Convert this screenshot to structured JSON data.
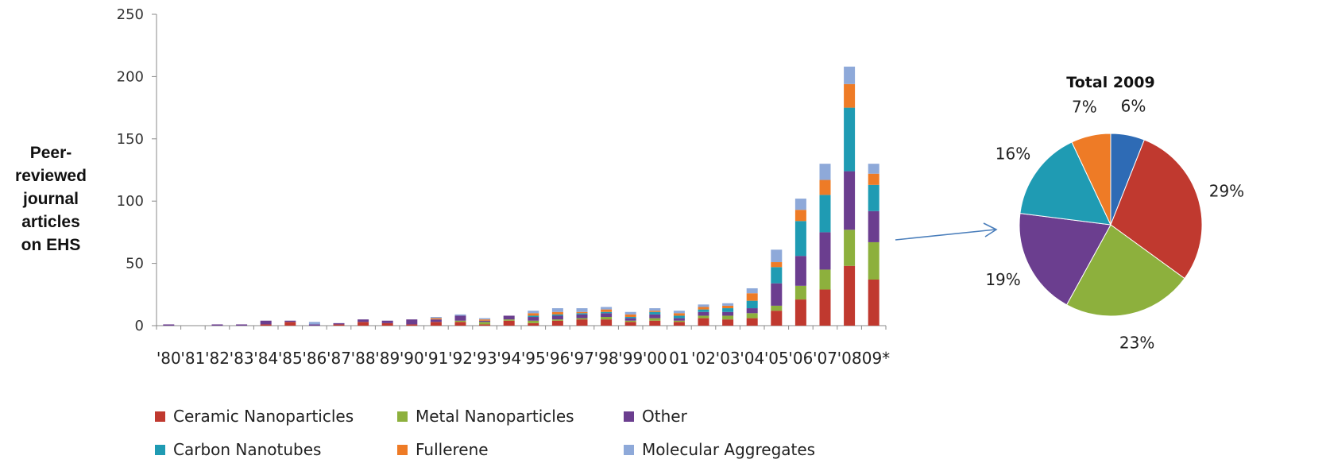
{
  "chart_data": [
    {
      "type": "bar",
      "stacked": true,
      "ylabel": "Peer-reviewed journal articles on EHS",
      "ylim": [
        0,
        250
      ],
      "yticks": [
        "0",
        "50",
        "100",
        "150",
        "200",
        "250"
      ],
      "categories": [
        "'80",
        "'81",
        "'82",
        "'83",
        "'84",
        "'85",
        "'86",
        "'87",
        "'88",
        "'89",
        "'90",
        "'91",
        "'92",
        "'93",
        "'94",
        "'95",
        "'96",
        "'97",
        "'98",
        "'99",
        "'00",
        "01",
        "'02",
        "'03",
        "'04",
        "'05",
        "'06",
        "'07",
        "'08",
        "'09*"
      ],
      "series": [
        {
          "name": "Ceramic Nanoparticles",
          "color": "#C0392F",
          "values": [
            0,
            0,
            0,
            0,
            1,
            3,
            0,
            1,
            3,
            2,
            1,
            3,
            3,
            1,
            4,
            2,
            4,
            5,
            5,
            3,
            4,
            3,
            6,
            5,
            6,
            12,
            21,
            29,
            48,
            37
          ]
        },
        {
          "name": "Metal Nanoparticles",
          "color": "#8DB03D",
          "values": [
            0,
            0,
            0,
            0,
            0,
            0,
            0,
            0,
            0,
            0,
            0,
            0,
            1,
            2,
            1,
            2,
            1,
            1,
            2,
            1,
            2,
            1,
            2,
            3,
            4,
            4,
            11,
            16,
            29,
            30
          ]
        },
        {
          "name": "Other",
          "color": "#6B3E8F",
          "values": [
            1,
            0,
            1,
            1,
            3,
            1,
            1,
            1,
            2,
            2,
            4,
            2,
            4,
            1,
            3,
            3,
            3,
            3,
            3,
            2,
            3,
            2,
            3,
            3,
            4,
            18,
            24,
            30,
            47,
            25
          ]
        },
        {
          "name": "Carbon Nanotubes",
          "color": "#1F9BB3",
          "values": [
            0,
            0,
            0,
            0,
            0,
            0,
            0,
            0,
            0,
            0,
            0,
            0,
            0,
            0,
            0,
            1,
            1,
            1,
            1,
            1,
            2,
            2,
            2,
            3,
            6,
            13,
            28,
            30,
            51,
            21
          ]
        },
        {
          "name": "Fullerene",
          "color": "#EE7B26",
          "values": [
            0,
            0,
            0,
            0,
            0,
            0,
            0,
            0,
            0,
            0,
            0,
            1,
            0,
            1,
            0,
            2,
            2,
            1,
            2,
            2,
            1,
            2,
            2,
            2,
            6,
            4,
            9,
            12,
            19,
            9
          ]
        },
        {
          "name": "Molecular Aggregates",
          "color": "#8EA9D9",
          "values": [
            0,
            0,
            0,
            0,
            0,
            0,
            2,
            0,
            0,
            0,
            0,
            1,
            1,
            1,
            0,
            2,
            3,
            3,
            2,
            2,
            2,
            2,
            2,
            2,
            4,
            10,
            9,
            13,
            14,
            8
          ]
        }
      ]
    },
    {
      "type": "pie",
      "title": "Total 2009",
      "slices": [
        {
          "label": "6%",
          "value": 6,
          "color": "#2E6BB5"
        },
        {
          "label": "29%",
          "value": 29,
          "color": "#C0392F"
        },
        {
          "label": "23%",
          "value": 23,
          "color": "#8DB03D"
        },
        {
          "label": "19%",
          "value": 19,
          "color": "#6B3E8F"
        },
        {
          "label": "16%",
          "value": 16,
          "color": "#1F9BB3"
        },
        {
          "label": "7%",
          "value": 7,
          "color": "#EE7B26"
        }
      ]
    }
  ],
  "arrow_color": "#4A7EBB"
}
